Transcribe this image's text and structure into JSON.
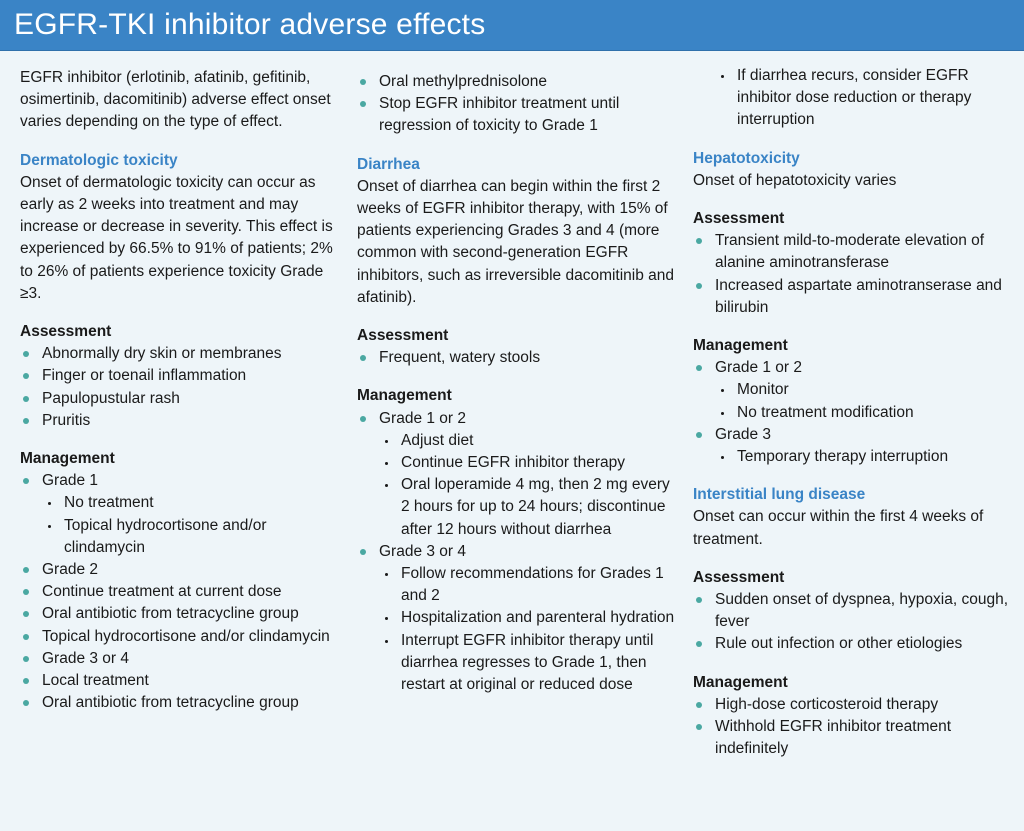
{
  "title": "EGFR-TKI inhibitor adverse effects",
  "intro": "EGFR inhibitor (erlotinib, afatinib, gefitinib, osimertinib, dacomitinib) adverse effect onset varies depending on the type of effect.",
  "dermatologic": {
    "heading": "Dermatologic toxicity",
    "onset": "Onset of dermatologic toxicity can occur as early as 2 weeks into treatment and may increase or decrease in severity. This effect is experienced by 66.5% to 91% of patients; 2% to 26% of patients experience toxicity Grade ≥3.",
    "assessment_label": "Assessment",
    "assessment": [
      "Abnormally dry skin or membranes",
      "Finger or toenail inflammation",
      "Papulopustular rash",
      "Pruritis"
    ],
    "management_label": "Management",
    "grade1": "Grade 1",
    "grade1_items": [
      "No treatment",
      "Topical hydrocortisone and/or clindamycin"
    ],
    "grade2": "Grade 2",
    "grade2_items": [
      "Continue treatment at current dose",
      "Oral antibiotic from tetracycline group",
      "Topical hydrocortisone and/or clindamycin"
    ],
    "grade34": "Grade 3 or 4",
    "grade34_items": [
      "Local treatment",
      "Oral antibiotic from tetracycline group",
      "Oral methylprednisolone",
      "Stop EGFR inhibitor treatment until regression of toxicity to Grade 1"
    ]
  },
  "diarrhea": {
    "heading": "Diarrhea",
    "onset": "Onset of diarrhea can begin within the first 2 weeks of EGFR inhibitor therapy, with 15% of patients experiencing Grades 3 and 4 (more common with second-generation EGFR inhibitors, such as irreversible dacomitinib and afatinib).",
    "assessment_label": "Assessment",
    "assessment": [
      "Frequent, watery stools"
    ],
    "management_label": "Management",
    "grade12": "Grade 1 or 2",
    "grade12_items": [
      "Adjust diet",
      "Continue EGFR inhibitor therapy",
      "Oral loperamide 4 mg, then 2 mg every 2 hours for up to 24 hours; discontinue after 12 hours without diarrhea"
    ],
    "grade34": "Grade 3 or 4",
    "grade34_items": [
      "Follow recommendations for Grades 1 and 2",
      "Hospitalization and parenteral hydration",
      "Interrupt EGFR inhibitor therapy until diarrhea regresses to Grade 1, then restart at original or reduced dose",
      "If diarrhea recurs, consider EGFR inhibitor dose reduction or therapy interruption"
    ]
  },
  "hepatotoxicity": {
    "heading": "Hepatotoxicity",
    "onset": "Onset of hepatotoxicity varies",
    "assessment_label": "Assessment",
    "assessment": [
      "Transient mild-to-moderate elevation of alanine aminotransferase",
      "Increased aspartate aminotranserase and bilirubin"
    ],
    "management_label": "Management",
    "grade12": "Grade 1 or 2",
    "grade12_items": [
      "Monitor",
      "No treatment modification"
    ],
    "grade3": "Grade 3",
    "grade3_items": [
      "Temporary therapy interruption"
    ]
  },
  "ild": {
    "heading": "Interstitial lung disease",
    "onset": "Onset can occur within the first 4 weeks of treatment.",
    "assessment_label": "Assessment",
    "assessment": [
      "Sudden onset of dyspnea, hypoxia, cough, fever",
      "Rule out infection or other etiologies"
    ],
    "management_label": "Management",
    "management": [
      "High-dose corticosteroid therapy",
      "Withhold EGFR inhibitor treatment indefinitely"
    ]
  }
}
